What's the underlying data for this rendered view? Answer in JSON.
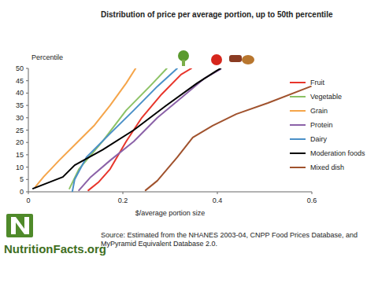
{
  "chart_data": {
    "type": "line",
    "title": "Distribution of price per average portion, up to 50th percentile",
    "y_label": "Percentile",
    "x_label": "$/average portion size",
    "xlim": [
      0,
      0.6
    ],
    "ylim": [
      0,
      50
    ],
    "xticks": [
      0,
      0.2,
      0.4,
      0.6
    ],
    "yticks": [
      0,
      5,
      10,
      15,
      20,
      25,
      30,
      35,
      40,
      45,
      50
    ],
    "grid": false,
    "legend": "right",
    "series": [
      {
        "name": "Fruit",
        "color": "#e8352b",
        "x": [
          0.127,
          0.148,
          0.173,
          0.207,
          0.24,
          0.282,
          0.323,
          0.345
        ],
        "values": [
          0.6,
          3.8,
          9.2,
          20.4,
          30,
          39.5,
          47.5,
          50
        ]
      },
      {
        "name": "Vegetable",
        "color": "#8cc265",
        "x": [
          0.087,
          0.107,
          0.157,
          0.207,
          0.257,
          0.293
        ],
        "values": [
          1.3,
          9.2,
          20.4,
          33,
          42.7,
          50
        ]
      },
      {
        "name": "Grain",
        "color": "#f5a54a",
        "x": [
          0.015,
          0.032,
          0.065,
          0.107,
          0.14,
          0.173,
          0.207,
          0.227
        ],
        "values": [
          2,
          6,
          12.7,
          20.7,
          27,
          35,
          44,
          50
        ]
      },
      {
        "name": "Protein",
        "color": "#8b62a8",
        "x": [
          0.107,
          0.132,
          0.173,
          0.223,
          0.273,
          0.323,
          0.373,
          0.407
        ],
        "values": [
          0.6,
          6,
          12.7,
          20.4,
          30,
          38,
          46,
          49.7
        ]
      },
      {
        "name": "Dairy",
        "color": "#4a90c8",
        "x": [
          0.093,
          0.098,
          0.123,
          0.173,
          0.223,
          0.273,
          0.315
        ],
        "values": [
          0,
          5,
          14,
          23.6,
          33,
          42.7,
          50
        ]
      },
      {
        "name": "Moderation foods",
        "color": "#000000",
        "x": [
          0.01,
          0.073,
          0.098,
          0.157,
          0.223,
          0.29,
          0.357,
          0.398,
          0.407
        ],
        "values": [
          1.3,
          6,
          10.8,
          17,
          25,
          34.7,
          44,
          49,
          50
        ]
      },
      {
        "name": "Mixed dish",
        "color": "#a0522d",
        "x": [
          0.248,
          0.273,
          0.315,
          0.348,
          0.39,
          0.44,
          0.507,
          0.598
        ],
        "values": [
          0.6,
          4.5,
          14,
          22,
          26.8,
          31.5,
          36,
          42.7
        ]
      }
    ],
    "annotations": [
      "Source: Estimated from the NHANES 2003-04, CNPP Food Prices Database, and MyPyramid Equivalent Database 2.0.",
      "NutritionFacts.org"
    ]
  }
}
